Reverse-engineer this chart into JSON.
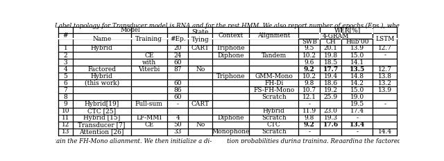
{
  "title_text": "included. Label topology for Transducer model is RNA and for the rest HMM. We also report number of epochs (Eps.), where availab",
  "footer_text": "e obtain the FH-Mono alignment. We then initialize a di-        tion probabilities during training. Regarding the factored hyb",
  "rows": [
    {
      "num": "1",
      "name": "Hybrid",
      "training": "",
      "ep": "20",
      "state": "CART",
      "context": "Triphone",
      "alignment": "",
      "swb": "9.5",
      "ch": "20.1",
      "hub": "13.9",
      "lstm": "12.7",
      "bold": []
    },
    {
      "num": "2",
      "name": "",
      "training": "CE",
      "ep": "24",
      "state": "",
      "context": "Diphone",
      "alignment": "Tandem",
      "swb": "10.2",
      "ch": "19.8",
      "hub": "15.0",
      "lstm": "-",
      "bold": []
    },
    {
      "num": "3",
      "name": "",
      "training": "with",
      "ep": "60",
      "state": "",
      "context": "",
      "alignment": "",
      "swb": "9.6",
      "ch": "18.5",
      "hub": "14.1",
      "lstm": "",
      "bold": []
    },
    {
      "num": "4",
      "name": "Factored",
      "training": "Viterbi",
      "ep": "87",
      "state": "No",
      "context": "",
      "alignment": "",
      "swb": "9.2",
      "ch": "17.7",
      "hub": "13.5",
      "lstm": "12.7",
      "bold": [
        "swb",
        "ch",
        "hub"
      ]
    },
    {
      "num": "5",
      "name": "Hybrid",
      "training": "",
      "ep": "",
      "state": "",
      "context": "Triphone",
      "alignment": "GMM-Mono",
      "swb": "10.2",
      "ch": "19.4",
      "hub": "14.8",
      "lstm": "13.8",
      "bold": []
    },
    {
      "num": "6",
      "name": "(this work)",
      "training": "",
      "ep": "60",
      "state": "",
      "context": "",
      "alignment": "FH-Di",
      "swb": "9.8",
      "ch": "18.6",
      "hub": "14.2",
      "lstm": "13.2",
      "bold": []
    },
    {
      "num": "7",
      "name": "",
      "training": "",
      "ep": "86",
      "state": "",
      "context": "",
      "alignment": "FS-FH-Mono",
      "swb": "10.7",
      "ch": "19.2",
      "hub": "15.0",
      "lstm": "13.9",
      "bold": []
    },
    {
      "num": "8",
      "name": "",
      "training": "",
      "ep": "60",
      "state": "",
      "context": "",
      "alignment": "Scratch",
      "swb": "12.1",
      "ch": "25.9",
      "hub": "19.0",
      "lstm": "",
      "bold": []
    },
    {
      "num": "9",
      "name": "Hybrid[19]",
      "training": "Full-sum",
      "ep": "-",
      "state": "CART",
      "context": "",
      "alignment": "",
      "swb": "-",
      "ch": "",
      "hub": "19.5",
      "lstm": "-",
      "bold": []
    },
    {
      "num": "10",
      "name": "CTC [25]",
      "training": "",
      "ep": "",
      "state": "",
      "context": "",
      "alignment": "Hybrid",
      "swb": "11.9",
      "ch": "23.0",
      "hub": "17.4",
      "lstm": "",
      "bold": []
    },
    {
      "num": "11",
      "name": "Hybrid [15]",
      "training": "LF-MMI",
      "ep": "4",
      "state": "",
      "context": "Diphone",
      "alignment": "Scratch",
      "swb": "9.8",
      "ch": "19.3",
      "hub": "-",
      "lstm": "",
      "bold": []
    },
    {
      "num": "12",
      "name": "Transducer [7]",
      "training": "CE",
      "ep": "50",
      "state": "No",
      "context": "",
      "alignment": "CTC",
      "swb": "9.2",
      "ch": "17.6",
      "hub": "13.4",
      "lstm": "",
      "bold": [
        "swb",
        "ch",
        "hub"
      ]
    },
    {
      "num": "13",
      "name": "Attention [26]",
      "training": "",
      "ep": "33",
      "state": "",
      "context": "Monophone",
      "alignment": "Scratch",
      "swb": "-",
      "ch": "",
      "hub": "-",
      "lstm": "14.4",
      "bold": []
    }
  ],
  "font_size": 6.5,
  "title_fontsize": 6.2
}
